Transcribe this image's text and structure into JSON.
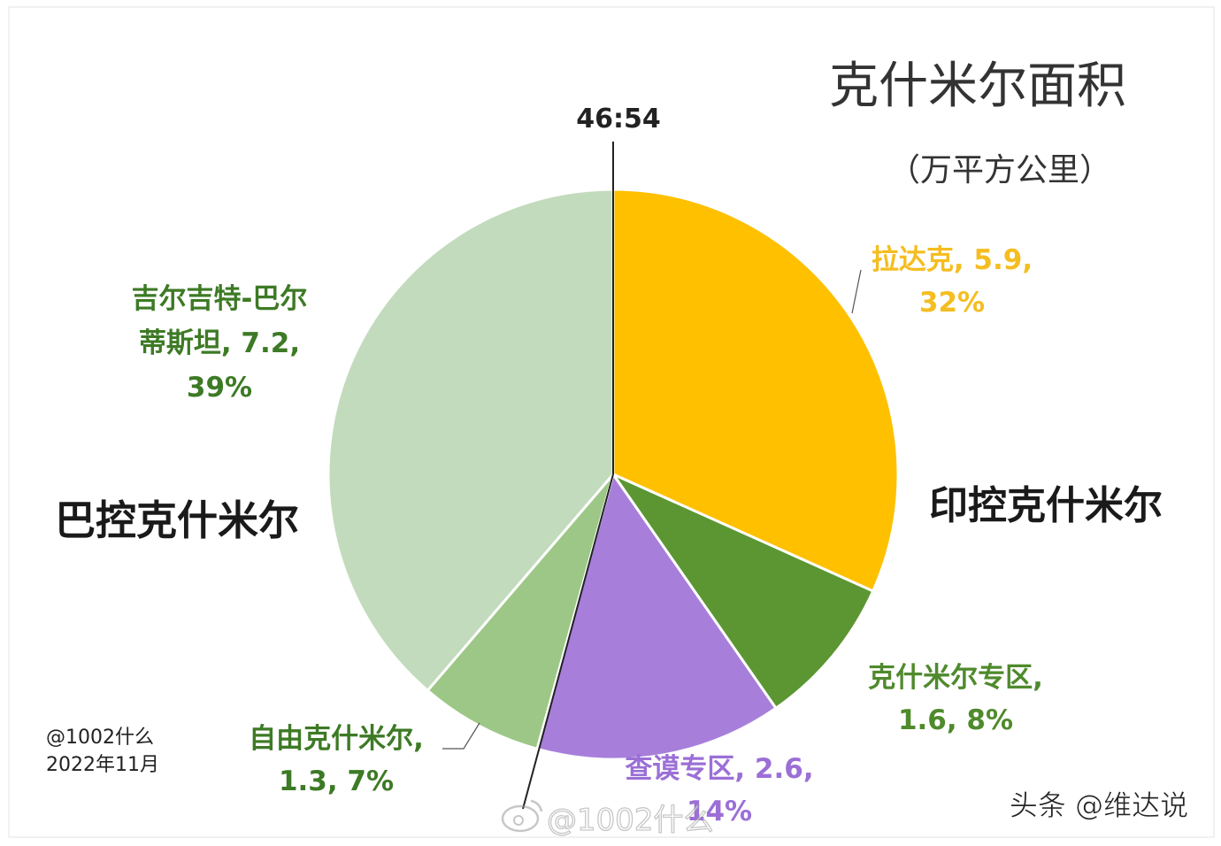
{
  "chart_data": {
    "type": "pie",
    "title": "克什米尔面积",
    "subtitle": "（万平方公里）",
    "ratio_label": "46:54",
    "slices": [
      {
        "name": "拉达克",
        "value": 5.9,
        "percent": "32%",
        "label_lines": [
          "拉达克, 5.9,",
          "32%"
        ],
        "color": "#ffc000",
        "label_color": "#f5bd1f"
      },
      {
        "name": "克什米尔专区",
        "value": 1.6,
        "percent": "8%",
        "label_lines": [
          "克什米尔专区,",
          "1.6, 8%"
        ],
        "color": "#5b9632",
        "label_color": "#4f8a2c"
      },
      {
        "name": "查谟专区",
        "value": 2.6,
        "percent": "14%",
        "label_lines": [
          "查谟专区, 2.6,",
          "14%"
        ],
        "color": "#a77fdb",
        "label_color": "#9b6fd6"
      },
      {
        "name": "自由克什米尔",
        "value": 1.3,
        "percent": "7%",
        "label_lines": [
          "自由克什米尔,",
          "1.3, 7%"
        ],
        "color": "#9dc786",
        "label_color": "#3d7a25"
      },
      {
        "name": "吉尔吉特-巴尔蒂斯坦",
        "value": 7.2,
        "percent": "39%",
        "label_lines": [
          "吉尔吉特-巴尔",
          "蒂斯坦, 7.2,",
          "39%"
        ],
        "color": "#c3dbbd",
        "label_color": "#3d7a25"
      }
    ],
    "group_labels": {
      "india": "印控克什米尔",
      "pakistan": "巴控克什米尔"
    }
  },
  "credit": {
    "line1": "@1002什么",
    "line2": "2022年11月"
  },
  "watermark": {
    "weibo": "@1002什么",
    "toutiao": "头条 @维达说"
  }
}
